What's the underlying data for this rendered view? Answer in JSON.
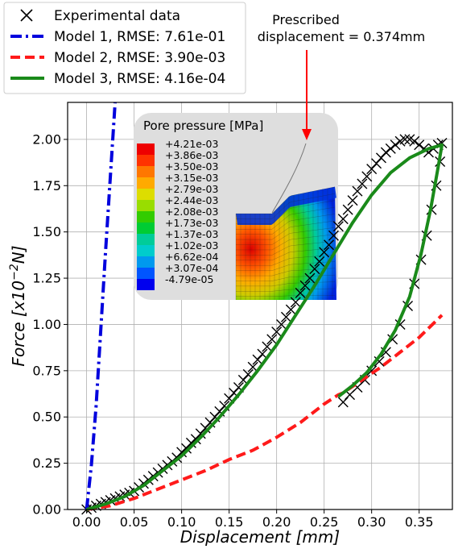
{
  "chart_data": {
    "type": "line",
    "title": "",
    "xlabel": "Displacement [mm]",
    "ylabel": "Force [x10−2N]",
    "xlim": [
      -0.02,
      0.385
    ],
    "ylim": [
      0,
      2.2
    ],
    "xticks": [
      "0.00",
      "0.05",
      "0.10",
      "0.15",
      "0.20",
      "0.25",
      "0.30",
      "0.35"
    ],
    "yticks": [
      "0.00",
      "0.25",
      "0.50",
      "0.75",
      "1.00",
      "1.25",
      "1.50",
      "1.75",
      "2.00"
    ],
    "grid": true,
    "legend_position": "top-left (outside axes)",
    "series": [
      {
        "name": "Experimental data",
        "kind": "marker-x",
        "color": "#000000",
        "x": [
          0.0,
          0.005,
          0.01,
          0.015,
          0.02,
          0.025,
          0.03,
          0.035,
          0.04,
          0.045,
          0.05,
          0.055,
          0.06,
          0.065,
          0.07,
          0.075,
          0.08,
          0.085,
          0.09,
          0.095,
          0.1,
          0.105,
          0.11,
          0.115,
          0.12,
          0.125,
          0.13,
          0.135,
          0.14,
          0.145,
          0.15,
          0.155,
          0.16,
          0.165,
          0.17,
          0.175,
          0.18,
          0.185,
          0.19,
          0.195,
          0.2,
          0.205,
          0.21,
          0.215,
          0.22,
          0.225,
          0.23,
          0.235,
          0.24,
          0.245,
          0.25,
          0.255,
          0.26,
          0.265,
          0.27,
          0.275,
          0.28,
          0.285,
          0.29,
          0.295,
          0.3,
          0.305,
          0.31,
          0.315,
          0.32,
          0.325,
          0.33,
          0.335,
          0.34,
          0.345,
          0.35,
          0.355,
          0.36,
          0.365,
          0.37,
          0.374,
          0.372,
          0.368,
          0.363,
          0.358,
          0.352,
          0.345,
          0.338,
          0.33,
          0.322,
          0.315,
          0.308,
          0.3,
          0.293,
          0.285,
          0.277,
          0.27
        ],
        "y": [
          0.0,
          0.01,
          0.02,
          0.03,
          0.04,
          0.05,
          0.06,
          0.07,
          0.08,
          0.09,
          0.1,
          0.12,
          0.14,
          0.16,
          0.18,
          0.2,
          0.22,
          0.24,
          0.26,
          0.28,
          0.31,
          0.33,
          0.36,
          0.38,
          0.41,
          0.44,
          0.47,
          0.5,
          0.53,
          0.56,
          0.6,
          0.63,
          0.66,
          0.7,
          0.73,
          0.77,
          0.81,
          0.84,
          0.88,
          0.92,
          0.96,
          1.0,
          1.04,
          1.08,
          1.12,
          1.17,
          1.21,
          1.25,
          1.3,
          1.34,
          1.39,
          1.43,
          1.48,
          1.53,
          1.57,
          1.62,
          1.67,
          1.72,
          1.76,
          1.8,
          1.84,
          1.87,
          1.9,
          1.93,
          1.95,
          1.97,
          1.99,
          2.0,
          2.0,
          1.99,
          1.97,
          1.95,
          1.93,
          1.95,
          1.97,
          1.98,
          1.88,
          1.75,
          1.62,
          1.48,
          1.35,
          1.22,
          1.1,
          1.0,
          0.92,
          0.85,
          0.8,
          0.75,
          0.7,
          0.66,
          0.62,
          0.58
        ]
      },
      {
        "name": "Model 1, RMSE: 7.61e-01",
        "kind": "dashdot",
        "color": "#0000dd",
        "x": [
          0.0,
          0.005,
          0.01,
          0.015,
          0.02,
          0.025,
          0.03
        ],
        "y": [
          0.0,
          0.24,
          0.56,
          0.98,
          1.4,
          1.8,
          2.2
        ]
      },
      {
        "name": "Model 2, RMSE: 3.90e-03",
        "kind": "dashed",
        "color": "#ff1a1a",
        "x": [
          0.0,
          0.025,
          0.05,
          0.075,
          0.1,
          0.125,
          0.15,
          0.175,
          0.2,
          0.225,
          0.25,
          0.265,
          0.27,
          0.29,
          0.31,
          0.33,
          0.35,
          0.374
        ],
        "y": [
          0.0,
          0.02,
          0.06,
          0.11,
          0.16,
          0.21,
          0.27,
          0.32,
          0.39,
          0.47,
          0.57,
          0.62,
          0.63,
          0.7,
          0.77,
          0.85,
          0.93,
          1.05
        ]
      },
      {
        "name": "Model 3, RMSE: 4.16e-04",
        "kind": "solid",
        "color": "#1a8a1a",
        "x": [
          0.0,
          0.02,
          0.04,
          0.06,
          0.08,
          0.1,
          0.12,
          0.14,
          0.16,
          0.18,
          0.2,
          0.22,
          0.24,
          0.26,
          0.28,
          0.3,
          0.32,
          0.34,
          0.36,
          0.374,
          0.37,
          0.362,
          0.352,
          0.34,
          0.325,
          0.31,
          0.295,
          0.28,
          0.265
        ],
        "y": [
          0.0,
          0.03,
          0.07,
          0.13,
          0.21,
          0.29,
          0.39,
          0.5,
          0.62,
          0.75,
          0.89,
          1.05,
          1.21,
          1.38,
          1.55,
          1.7,
          1.82,
          1.9,
          1.95,
          1.97,
          1.85,
          1.62,
          1.38,
          1.15,
          0.97,
          0.84,
          0.74,
          0.67,
          0.61
        ]
      }
    ],
    "annotation": {
      "lines": [
        "Prescribed",
        "displacement = 0.374mm"
      ],
      "arrow_color": "#ff0000"
    },
    "inset": {
      "title": "Pore pressure [MPa]",
      "colorbar_labels": [
        "+4.21e-03",
        "+3.86e-03",
        "+3.50e-03",
        "+3.15e-03",
        "+2.79e-03",
        "+2.44e-03",
        "+2.08e-03",
        "+1.73e-03",
        "+1.37e-03",
        "+1.02e-03",
        "+6.62e-04",
        "+3.07e-04",
        "-4.79e-05"
      ],
      "colorbar_colors": [
        "#ee0000",
        "#ff3300",
        "#ff7700",
        "#ffaa00",
        "#dddd00",
        "#99dd00",
        "#33cc00",
        "#00cc33",
        "#00cc99",
        "#00cccc",
        "#0099ee",
        "#0055ff",
        "#0000ee"
      ]
    }
  }
}
